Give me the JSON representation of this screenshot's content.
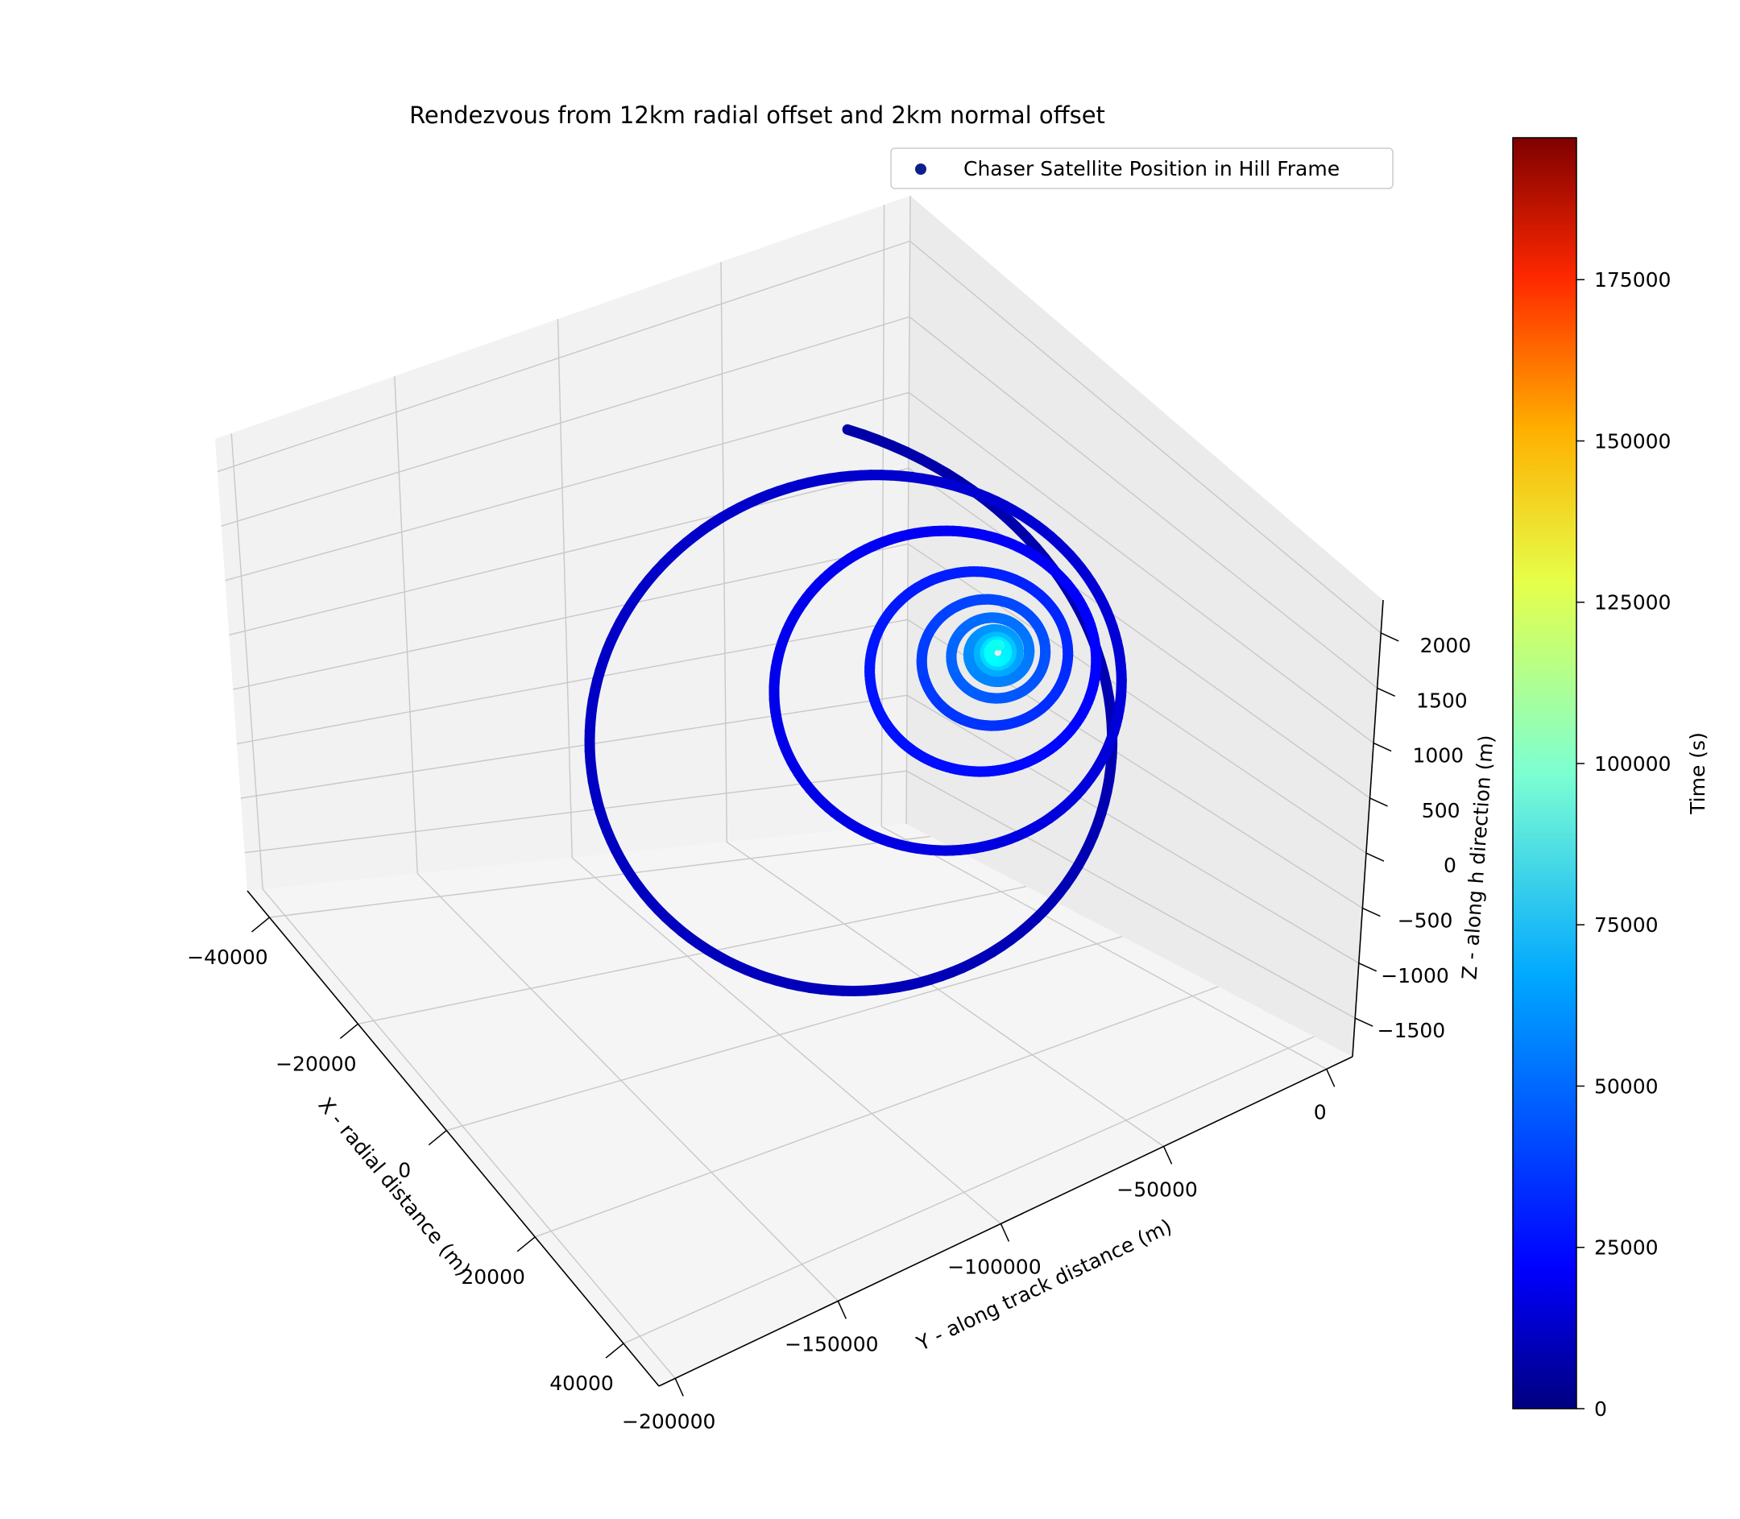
{
  "chart_data": {
    "type": "scatter",
    "projection": "3d",
    "title": "Rendezvous from 12km radial offset and 2km normal offset",
    "xlabel": "X - radial distance (m)",
    "ylabel": "Y - along track distance (m)",
    "zlabel": "Z - along h direction (m)",
    "x_ticks": [
      -40000,
      -20000,
      0,
      20000,
      40000
    ],
    "x_tick_labels": [
      "−40000",
      "−20000",
      "0",
      "20000",
      "40000"
    ],
    "y_ticks": [
      -200000,
      -150000,
      -100000,
      -50000,
      0
    ],
    "y_tick_labels": [
      "−200000",
      "−150000",
      "−100000",
      "−50000",
      "0"
    ],
    "z_ticks": [
      -1500,
      -1000,
      -500,
      0,
      500,
      1000,
      1500,
      2000
    ],
    "z_tick_labels": [
      "−1500",
      "−1000",
      "−500",
      "0",
      "500",
      "1000",
      "1500",
      "2000"
    ],
    "legend": {
      "label": "Chaser Satellite Position in Hill Frame",
      "placement": "upper right",
      "marker_color": "#0c1f8c"
    },
    "colorbar": {
      "label": "Time (s)",
      "colormap": "jet",
      "range": [
        0,
        197000
      ],
      "ticks": [
        0,
        25000,
        50000,
        75000,
        100000,
        125000,
        150000,
        175000
      ],
      "tick_labels": [
        "0",
        "25000",
        "50000",
        "75000",
        "100000",
        "125000",
        "150000",
        "175000"
      ]
    },
    "grid": true,
    "series": [
      {
        "description": "spiral trajectory converging toward origin, colored by time",
        "time_range": [
          0,
          197000
        ],
        "points_sampled": [
          {
            "t": 0,
            "x": 12000,
            "y": -15000,
            "z": 2000
          },
          {
            "t": 5000,
            "x": 40000,
            "y": -90000,
            "z": 500
          },
          {
            "t": 10000,
            "x": 15000,
            "y": -175000,
            "z": -1200
          },
          {
            "t": 20000,
            "x": -15000,
            "y": -60000,
            "z": 1200
          },
          {
            "t": 30000,
            "x": -8000,
            "y": -40000,
            "z": -500
          },
          {
            "t": 45000,
            "x": 3000,
            "y": -15000,
            "z": 600
          },
          {
            "t": 197000,
            "x": 0,
            "y": 0,
            "z": 0
          }
        ]
      }
    ]
  }
}
